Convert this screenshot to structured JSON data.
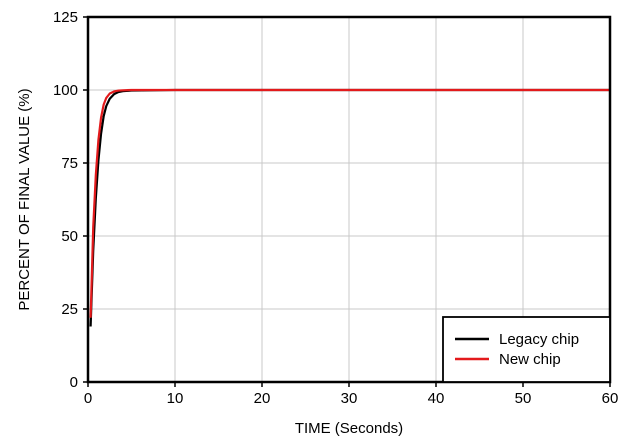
{
  "chart_data": {
    "type": "line",
    "title": "",
    "xlabel": "TIME (Seconds)",
    "ylabel": "PERCENT OF FINAL VALUE (%)",
    "xlim": [
      0,
      60
    ],
    "ylim": [
      0,
      125
    ],
    "x_ticks": [
      "0",
      "10",
      "20",
      "30",
      "40",
      "50",
      "60"
    ],
    "y_ticks": [
      "0",
      "25",
      "50",
      "75",
      "100",
      "125"
    ],
    "grid": true,
    "legend_position": "bottom-right",
    "series": [
      {
        "name": "Legacy chip",
        "color": "#000000",
        "x": [
          0.3,
          0.6,
          0.9,
          1.2,
          1.5,
          1.8,
          2.1,
          2.5,
          3.0,
          3.5,
          4.0,
          5.0,
          10,
          20,
          30,
          40,
          50,
          60
        ],
        "y": [
          19,
          45,
          63,
          76,
          85,
          91,
          94.5,
          97,
          98.6,
          99.3,
          99.6,
          99.8,
          100,
          100,
          100,
          100,
          100,
          100
        ]
      },
      {
        "name": "New chip",
        "color": "#e31a1c",
        "x": [
          0.3,
          0.6,
          0.9,
          1.2,
          1.5,
          1.8,
          2.1,
          2.5,
          3.0,
          3.5,
          4.0,
          5.0,
          10,
          20,
          30,
          40,
          50,
          60
        ],
        "y": [
          22,
          53,
          71,
          83,
          90.5,
          95,
          97.3,
          98.8,
          99.5,
          99.8,
          99.9,
          100,
          100,
          100,
          100,
          100,
          100,
          100
        ]
      }
    ]
  }
}
